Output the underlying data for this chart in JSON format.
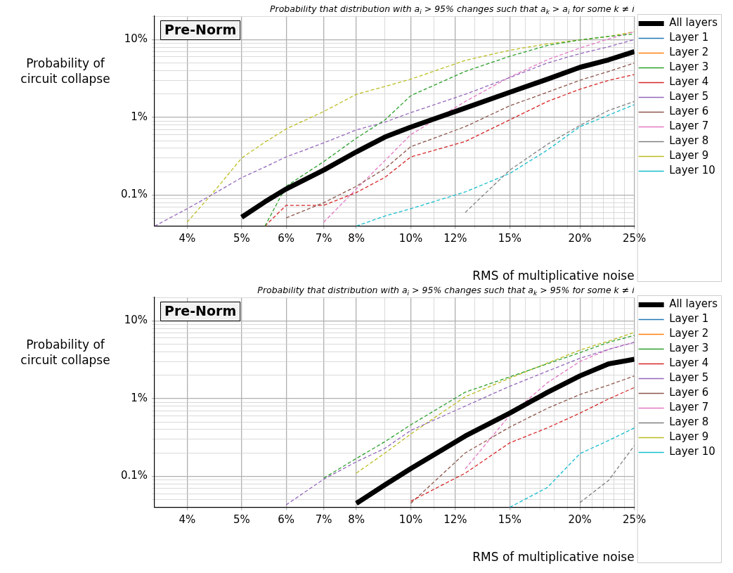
{
  "chart_data": [
    {
      "type": "line",
      "title": "Probability that distribution with a$_{i}$ > 95% changes such that a$_{k}$ > a$_{i}$ for some k ≠ i",
      "xlabel": "RMS of multiplicative noise",
      "ylabel": "Probability of circuit collapse",
      "annotations": [
        "Pre-Norm"
      ],
      "log": "xy",
      "grid": true,
      "legend": "right",
      "marker": "none",
      "line_style": "dashed",
      "xlim": [
        3.5,
        25
      ],
      "ylim": [
        0.04,
        20
      ],
      "xticks": [
        {
          "value": 4,
          "label": "4%"
        },
        {
          "value": 5,
          "label": "5%"
        },
        {
          "value": 6,
          "label": "6%"
        },
        {
          "value": 7,
          "label": "7%"
        },
        {
          "value": 8,
          "label": "8%"
        },
        {
          "value": 9,
          "label": null
        },
        {
          "value": 10,
          "label": "10%"
        },
        {
          "value": 11,
          "label": null
        },
        {
          "value": 12,
          "label": "12%"
        },
        {
          "value": 13,
          "label": null
        },
        {
          "value": 14,
          "label": null
        },
        {
          "value": 15,
          "label": "15%"
        },
        {
          "value": 16,
          "label": null
        },
        {
          "value": 17,
          "label": null
        },
        {
          "value": 18,
          "label": null
        },
        {
          "value": 19,
          "label": null
        },
        {
          "value": 20,
          "label": "20%"
        },
        {
          "value": 21,
          "label": null
        },
        {
          "value": 22,
          "label": null
        },
        {
          "value": 23,
          "label": null
        },
        {
          "value": 24,
          "label": null
        },
        {
          "value": 25,
          "label": "25%"
        }
      ],
      "yticks": [
        {
          "value": 0.05,
          "label": null
        },
        {
          "value": 0.06,
          "label": null
        },
        {
          "value": 0.07,
          "label": null
        },
        {
          "value": 0.08,
          "label": null
        },
        {
          "value": 0.09,
          "label": null
        },
        {
          "value": 0.1,
          "label": "0.1%"
        },
        {
          "value": 0.2,
          "label": null
        },
        {
          "value": 0.3,
          "label": null
        },
        {
          "value": 0.4,
          "label": null
        },
        {
          "value": 0.5,
          "label": null
        },
        {
          "value": 0.6,
          "label": null
        },
        {
          "value": 0.7,
          "label": null
        },
        {
          "value": 0.8,
          "label": null
        },
        {
          "value": 0.9,
          "label": null
        },
        {
          "value": 1,
          "label": "1%"
        },
        {
          "value": 2,
          "label": null
        },
        {
          "value": 3,
          "label": null
        },
        {
          "value": 4,
          "label": null
        },
        {
          "value": 5,
          "label": null
        },
        {
          "value": 6,
          "label": null
        },
        {
          "value": 7,
          "label": null
        },
        {
          "value": 8,
          "label": null
        },
        {
          "value": 9,
          "label": null
        },
        {
          "value": 10,
          "label": "10%"
        },
        {
          "value": 20,
          "label": null
        }
      ],
      "x": [
        3.5,
        4,
        4.5,
        5,
        5.5,
        6,
        7,
        8,
        9,
        10,
        12.5,
        15,
        17.5,
        20,
        22.5,
        25
      ],
      "series": [
        {
          "name": "All layers",
          "color": "#000000",
          "line_style": "solid",
          "values": [
            null,
            null,
            null,
            0.052,
            0.082,
            0.12,
            0.21,
            0.36,
            0.56,
            0.75,
            1.32,
            2.1,
            3.1,
            4.4,
            5.5,
            7.0
          ]
        },
        {
          "name": "Layer 1",
          "color": "#1f77b4",
          "values": [
            null,
            null,
            null,
            null,
            null,
            null,
            null,
            null,
            null,
            null,
            null,
            null,
            null,
            null,
            null,
            null
          ]
        },
        {
          "name": "Layer 2",
          "color": "#ff7f0e",
          "values": [
            null,
            null,
            null,
            null,
            null,
            null,
            null,
            null,
            null,
            null,
            null,
            null,
            null,
            null,
            null,
            null
          ]
        },
        {
          "name": "Layer 3",
          "color": "#2ca02c",
          "values": [
            null,
            null,
            null,
            null,
            0.04,
            0.13,
            0.27,
            0.54,
            0.93,
            1.9,
            3.9,
            6.1,
            8.4,
            9.9,
            11.0,
            11.8
          ]
        },
        {
          "name": "Layer 4",
          "color": "#d62728",
          "values": [
            null,
            null,
            null,
            null,
            0.04,
            0.074,
            0.074,
            0.108,
            0.17,
            0.31,
            0.49,
            0.93,
            1.6,
            2.3,
            3.0,
            3.55
          ]
        },
        {
          "name": "Layer 5",
          "color": "#9467bd",
          "values": [
            0.04,
            0.067,
            0.108,
            0.168,
            0.23,
            0.31,
            0.47,
            0.69,
            0.87,
            1.15,
            1.98,
            3.25,
            5.0,
            6.6,
            8.1,
            10.0
          ]
        },
        {
          "name": "Layer 6",
          "color": "#8c564b",
          "values": [
            null,
            null,
            null,
            null,
            null,
            0.051,
            0.08,
            0.13,
            0.22,
            0.42,
            0.76,
            1.41,
            2.1,
            3.0,
            3.9,
            5.0
          ]
        },
        {
          "name": "Layer 7",
          "color": "#e377c2",
          "values": [
            null,
            null,
            null,
            null,
            null,
            null,
            0.045,
            0.12,
            0.28,
            0.6,
            1.6,
            3.3,
            5.5,
            7.8,
            10.2,
            12.6
          ]
        },
        {
          "name": "Layer 8",
          "color": "#7f7f7f",
          "values": [
            null,
            null,
            null,
            null,
            null,
            null,
            null,
            null,
            null,
            null,
            0.06,
            0.21,
            0.45,
            0.79,
            1.23,
            1.6
          ]
        },
        {
          "name": "Layer 9",
          "color": "#bcbd22",
          "values": [
            null,
            0.045,
            0.119,
            0.3,
            0.48,
            0.71,
            1.19,
            1.98,
            2.5,
            3.1,
            5.4,
            7.3,
            8.8,
            9.9,
            11.0,
            12.6
          ]
        },
        {
          "name": "Layer 10",
          "color": "#17becf",
          "values": [
            null,
            null,
            null,
            null,
            null,
            null,
            null,
            0.04,
            0.054,
            0.067,
            0.11,
            0.19,
            0.38,
            0.76,
            1.07,
            1.46
          ]
        }
      ]
    },
    {
      "type": "line",
      "title": "Probability that distribution with a$_{i}$ > 95% changes such that a$_{k}$ > 95% for some k ≠ i",
      "xlabel": "RMS of multiplicative noise",
      "ylabel": "Probability of circuit collapse",
      "annotations": [
        "Pre-Norm"
      ],
      "log": "xy",
      "grid": true,
      "legend": "right",
      "marker": "none",
      "line_style": "dashed",
      "xlim": [
        3.5,
        25
      ],
      "ylim": [
        0.04,
        20
      ],
      "xticks": [
        {
          "value": 4,
          "label": "4%"
        },
        {
          "value": 5,
          "label": "5%"
        },
        {
          "value": 6,
          "label": "6%"
        },
        {
          "value": 7,
          "label": "7%"
        },
        {
          "value": 8,
          "label": "8%"
        },
        {
          "value": 9,
          "label": null
        },
        {
          "value": 10,
          "label": "10%"
        },
        {
          "value": 11,
          "label": null
        },
        {
          "value": 12,
          "label": "12%"
        },
        {
          "value": 13,
          "label": null
        },
        {
          "value": 14,
          "label": null
        },
        {
          "value": 15,
          "label": "15%"
        },
        {
          "value": 16,
          "label": null
        },
        {
          "value": 17,
          "label": null
        },
        {
          "value": 18,
          "label": null
        },
        {
          "value": 19,
          "label": null
        },
        {
          "value": 20,
          "label": "20%"
        },
        {
          "value": 21,
          "label": null
        },
        {
          "value": 22,
          "label": null
        },
        {
          "value": 23,
          "label": null
        },
        {
          "value": 24,
          "label": null
        },
        {
          "value": 25,
          "label": "25%"
        }
      ],
      "yticks": [
        {
          "value": 0.05,
          "label": null
        },
        {
          "value": 0.06,
          "label": null
        },
        {
          "value": 0.07,
          "label": null
        },
        {
          "value": 0.08,
          "label": null
        },
        {
          "value": 0.09,
          "label": null
        },
        {
          "value": 0.1,
          "label": "0.1%"
        },
        {
          "value": 0.2,
          "label": null
        },
        {
          "value": 0.3,
          "label": null
        },
        {
          "value": 0.4,
          "label": null
        },
        {
          "value": 0.5,
          "label": null
        },
        {
          "value": 0.6,
          "label": null
        },
        {
          "value": 0.7,
          "label": null
        },
        {
          "value": 0.8,
          "label": null
        },
        {
          "value": 0.9,
          "label": null
        },
        {
          "value": 1,
          "label": "1%"
        },
        {
          "value": 2,
          "label": null
        },
        {
          "value": 3,
          "label": null
        },
        {
          "value": 4,
          "label": null
        },
        {
          "value": 5,
          "label": null
        },
        {
          "value": 6,
          "label": null
        },
        {
          "value": 7,
          "label": null
        },
        {
          "value": 8,
          "label": null
        },
        {
          "value": 9,
          "label": null
        },
        {
          "value": 10,
          "label": "10%"
        },
        {
          "value": 20,
          "label": null
        }
      ],
      "x": [
        6,
        7,
        8,
        9,
        10,
        12.5,
        15,
        17.5,
        20,
        22.5,
        25
      ],
      "series": [
        {
          "name": "All layers",
          "color": "#000000",
          "line_style": "solid",
          "values": [
            null,
            null,
            0.045,
            0.078,
            0.126,
            0.33,
            0.65,
            1.2,
            1.96,
            2.8,
            3.2
          ]
        },
        {
          "name": "Layer 1",
          "color": "#1f77b4",
          "values": [
            null,
            null,
            null,
            null,
            null,
            null,
            null,
            null,
            null,
            null,
            null
          ]
        },
        {
          "name": "Layer 2",
          "color": "#ff7f0e",
          "values": [
            null,
            null,
            null,
            null,
            null,
            null,
            null,
            null,
            null,
            null,
            null
          ]
        },
        {
          "name": "Layer 3",
          "color": "#2ca02c",
          "values": [
            null,
            0.095,
            0.17,
            0.28,
            0.46,
            1.21,
            1.9,
            2.8,
            3.9,
            5.3,
            6.5
          ]
        },
        {
          "name": "Layer 4",
          "color": "#d62728",
          "values": [
            null,
            null,
            null,
            null,
            0.048,
            0.11,
            0.27,
            0.42,
            0.65,
            0.99,
            1.39
          ]
        },
        {
          "name": "Layer 5",
          "color": "#9467bd",
          "values": [
            0.043,
            0.092,
            0.154,
            0.23,
            0.39,
            0.8,
            1.44,
            2.25,
            3.3,
            4.3,
            5.3
          ]
        },
        {
          "name": "Layer 6",
          "color": "#8c564b",
          "values": [
            null,
            null,
            null,
            null,
            0.045,
            0.2,
            0.43,
            0.75,
            1.13,
            1.49,
            1.96
          ]
        },
        {
          "name": "Layer 7",
          "color": "#e377c2",
          "values": [
            null,
            null,
            null,
            null,
            null,
            0.125,
            0.61,
            1.6,
            3.0,
            4.3,
            5.3
          ]
        },
        {
          "name": "Layer 8",
          "color": "#7f7f7f",
          "values": [
            null,
            null,
            null,
            null,
            null,
            null,
            null,
            null,
            0.046,
            0.089,
            0.25
          ]
        },
        {
          "name": "Layer 9",
          "color": "#bcbd22",
          "values": [
            null,
            null,
            0.11,
            0.2,
            0.35,
            1.06,
            1.83,
            2.86,
            4.2,
            5.5,
            7.1
          ]
        },
        {
          "name": "Layer 10",
          "color": "#17becf",
          "values": [
            null,
            null,
            null,
            null,
            null,
            null,
            0.04,
            0.072,
            0.196,
            0.29,
            0.42
          ]
        }
      ]
    }
  ]
}
